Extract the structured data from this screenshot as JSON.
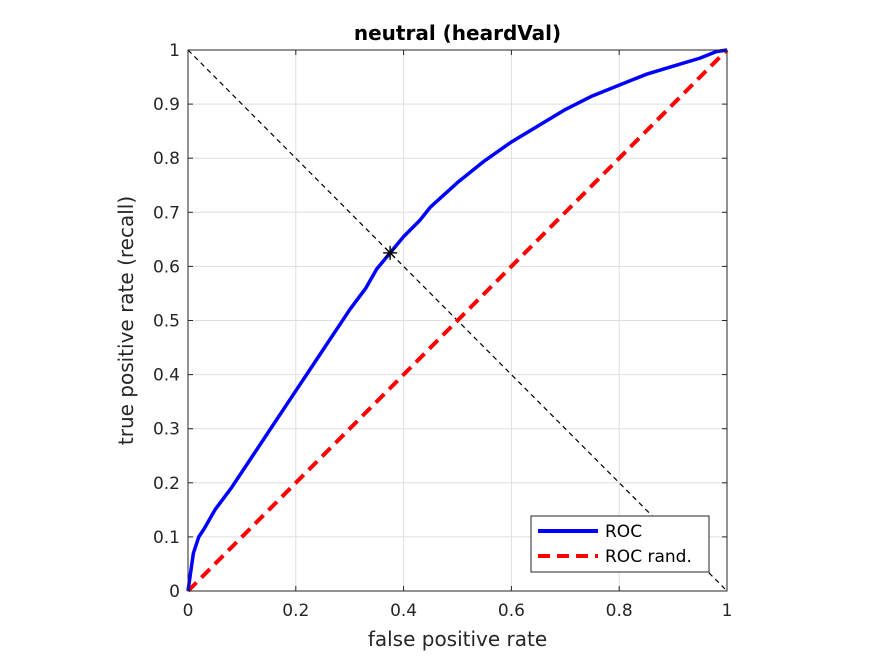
{
  "chart_data": {
    "type": "line",
    "title": "neutral (heardVal)",
    "xlabel": "false positive rate",
    "ylabel": "true positive rate (recall)",
    "xlim": [
      0,
      1
    ],
    "ylim": [
      0,
      1
    ],
    "grid": true,
    "x_ticks": [
      0,
      0.2,
      0.4,
      0.6,
      0.8,
      1
    ],
    "x_tick_labels": [
      "0",
      "0.2",
      "0.4",
      "0.6",
      "0.8",
      "1"
    ],
    "y_ticks": [
      0,
      0.1,
      0.2,
      0.3,
      0.4,
      0.5,
      0.6,
      0.7,
      0.8,
      0.9,
      1
    ],
    "y_tick_labels": [
      "0",
      "0.1",
      "0.2",
      "0.3",
      "0.4",
      "0.5",
      "0.6",
      "0.7",
      "0.8",
      "0.9",
      "1"
    ],
    "legend_position": "bottom-right",
    "series": [
      {
        "name": "ROC",
        "color": "#0000ff",
        "style": "solid",
        "x": [
          0,
          0.005,
          0.01,
          0.02,
          0.03,
          0.05,
          0.08,
          0.1,
          0.12,
          0.15,
          0.18,
          0.2,
          0.22,
          0.25,
          0.28,
          0.3,
          0.33,
          0.35,
          0.375,
          0.4,
          0.43,
          0.45,
          0.5,
          0.55,
          0.6,
          0.65,
          0.7,
          0.75,
          0.8,
          0.85,
          0.9,
          0.95,
          0.98,
          1
        ],
        "y": [
          0,
          0.035,
          0.07,
          0.1,
          0.115,
          0.15,
          0.19,
          0.22,
          0.25,
          0.295,
          0.34,
          0.37,
          0.4,
          0.445,
          0.49,
          0.52,
          0.56,
          0.595,
          0.625,
          0.655,
          0.685,
          0.71,
          0.755,
          0.795,
          0.83,
          0.86,
          0.89,
          0.915,
          0.935,
          0.955,
          0.97,
          0.985,
          0.997,
          1
        ]
      },
      {
        "name": "ROC rand.",
        "color": "#ff0000",
        "style": "dashed",
        "x": [
          0,
          1
        ],
        "y": [
          0,
          1
        ]
      }
    ],
    "reference_line": {
      "color": "#000000",
      "style": "dashed",
      "x": [
        0,
        1
      ],
      "y": [
        1,
        0
      ]
    },
    "marker": {
      "symbol": "*",
      "color": "#000000",
      "x": 0.375,
      "y": 0.625
    }
  }
}
